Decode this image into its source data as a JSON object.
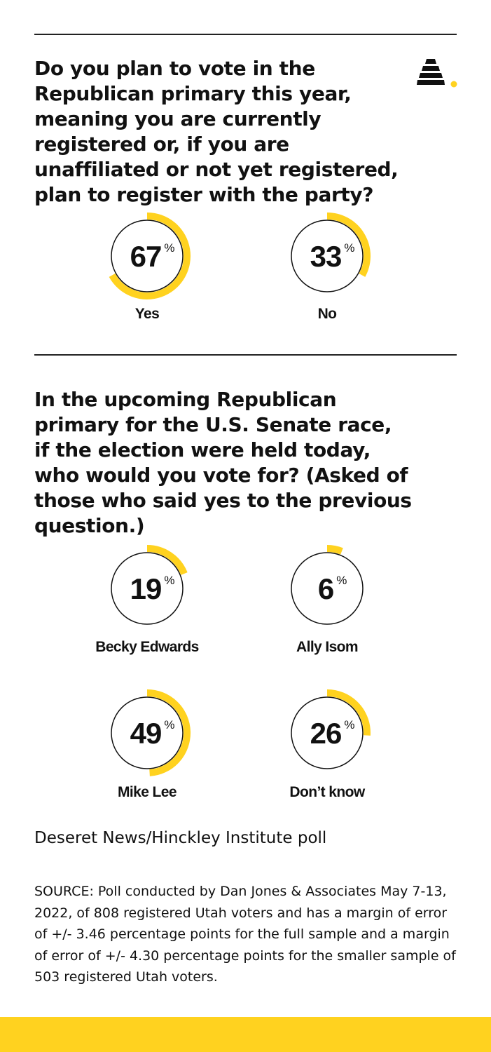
{
  "colors": {
    "accent": "#ffd21f",
    "ink": "#111111",
    "background": "#ffffff"
  },
  "logo": {
    "icon": "beehive-icon"
  },
  "chart_data": [
    {
      "type": "donut",
      "title": "Do you plan to vote in the Republican primary this year, meaning you are currently registered or, if you are unaffiliated or not yet registered, plan to register with the party?",
      "unit": "%",
      "categories": [
        "Yes",
        "No"
      ],
      "values": [
        67,
        33
      ]
    },
    {
      "type": "donut",
      "title": "In the upcoming Republican primary for the U.S. Senate race, if the election were held today, who would you vote for? (Asked of those who said yes to the previous question.)",
      "unit": "%",
      "categories": [
        "Becky Edwards",
        "Ally Isom",
        "Mike Lee",
        "Don’t know"
      ],
      "values": [
        19,
        6,
        49,
        26
      ]
    }
  ],
  "footer": {
    "credit": "Deseret News/Hinckley Institute poll",
    "source": "SOURCE: Poll conducted by Dan Jones & Associates May 7-13, 2022, of 808 registered Utah voters and has a margin of error of +/- 3.46 percentage points for the full sample and a margin of error of +/- 4.30 percentage points for the smaller sample of 503 registered Utah voters."
  }
}
